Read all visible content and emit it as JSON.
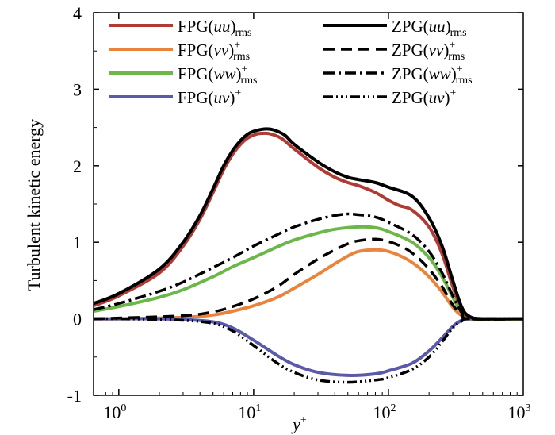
{
  "chart_data": {
    "type": "line",
    "title": "",
    "xlabel": "y",
    "xlabel_sup": "+",
    "ylabel": "Turbulent kinetic energy",
    "xscale": "log",
    "xlim": [
      0.65,
      1000
    ],
    "ylim": [
      -1,
      4
    ],
    "grid": false,
    "legend_position": "top",
    "xticks": [
      {
        "value": 1,
        "base": "10",
        "exp": "0"
      },
      {
        "value": 10,
        "base": "10",
        "exp": "1"
      },
      {
        "value": 100,
        "base": "10",
        "exp": "2"
      },
      {
        "value": 1000,
        "base": "10",
        "exp": "3"
      }
    ],
    "yticks": [
      {
        "value": -1,
        "label": "-1"
      },
      {
        "value": 0,
        "label": "0"
      },
      {
        "value": 1,
        "label": "1"
      },
      {
        "value": 2,
        "label": "2"
      },
      {
        "value": 3,
        "label": "3"
      },
      {
        "value": 4,
        "label": "4"
      }
    ],
    "series": [
      {
        "id": "fpg-uu",
        "name": "FPG(uu)",
        "legend": {
          "prefix": "FPG(",
          "var": "uu",
          "suffix": ")",
          "sup": "+",
          "sub": "rms"
        },
        "color": "#b23a35",
        "dash": "",
        "width": 4,
        "points": [
          [
            0.65,
            0.17
          ],
          [
            1,
            0.3
          ],
          [
            2,
            0.6
          ],
          [
            3,
            0.95
          ],
          [
            4,
            1.3
          ],
          [
            5,
            1.65
          ],
          [
            6,
            1.95
          ],
          [
            7,
            2.15
          ],
          [
            8,
            2.28
          ],
          [
            9,
            2.36
          ],
          [
            10,
            2.4
          ],
          [
            11,
            2.42
          ],
          [
            13,
            2.42
          ],
          [
            16,
            2.36
          ],
          [
            20,
            2.22
          ],
          [
            30,
            1.98
          ],
          [
            40,
            1.85
          ],
          [
            50,
            1.78
          ],
          [
            60,
            1.74
          ],
          [
            80,
            1.65
          ],
          [
            100,
            1.55
          ],
          [
            120,
            1.48
          ],
          [
            150,
            1.42
          ],
          [
            200,
            1.2
          ],
          [
            250,
            0.85
          ],
          [
            300,
            0.42
          ],
          [
            350,
            0.12
          ],
          [
            400,
            0.02
          ],
          [
            500,
            0.0
          ],
          [
            1000,
            0.0
          ]
        ]
      },
      {
        "id": "fpg-vv",
        "name": "FPG(vv)",
        "legend": {
          "prefix": "FPG(",
          "var": "vv",
          "suffix": ")",
          "sup": "+",
          "sub": "rms"
        },
        "color": "#e8843e",
        "dash": "",
        "width": 4,
        "points": [
          [
            0.65,
            0.0
          ],
          [
            1,
            0.0
          ],
          [
            3,
            0.02
          ],
          [
            5,
            0.05
          ],
          [
            7,
            0.1
          ],
          [
            10,
            0.17
          ],
          [
            15,
            0.28
          ],
          [
            20,
            0.4
          ],
          [
            30,
            0.58
          ],
          [
            40,
            0.72
          ],
          [
            50,
            0.82
          ],
          [
            60,
            0.88
          ],
          [
            80,
            0.9
          ],
          [
            100,
            0.88
          ],
          [
            130,
            0.8
          ],
          [
            160,
            0.7
          ],
          [
            200,
            0.55
          ],
          [
            250,
            0.35
          ],
          [
            300,
            0.15
          ],
          [
            350,
            0.04
          ],
          [
            400,
            0.0
          ],
          [
            1000,
            0.0
          ]
        ]
      },
      {
        "id": "fpg-ww",
        "name": "FPG(ww)",
        "legend": {
          "prefix": "FPG(",
          "var": "ww",
          "suffix": ")",
          "sup": "+",
          "sub": "rms"
        },
        "color": "#6cb749",
        "dash": "",
        "width": 4,
        "points": [
          [
            0.65,
            0.1
          ],
          [
            1,
            0.16
          ],
          [
            2,
            0.28
          ],
          [
            3,
            0.38
          ],
          [
            5,
            0.55
          ],
          [
            7,
            0.68
          ],
          [
            10,
            0.8
          ],
          [
            15,
            0.94
          ],
          [
            20,
            1.03
          ],
          [
            30,
            1.12
          ],
          [
            40,
            1.17
          ],
          [
            60,
            1.2
          ],
          [
            80,
            1.19
          ],
          [
            100,
            1.14
          ],
          [
            150,
            1.0
          ],
          [
            200,
            0.8
          ],
          [
            250,
            0.55
          ],
          [
            300,
            0.28
          ],
          [
            350,
            0.08
          ],
          [
            400,
            0.0
          ],
          [
            1000,
            0.0
          ]
        ]
      },
      {
        "id": "fpg-uv",
        "name": "FPG(uv)",
        "legend": {
          "prefix": "FPG(",
          "var": "uv",
          "suffix": ")",
          "sup": "+",
          "sub": ""
        },
        "color": "#5a5aa8",
        "dash": "",
        "width": 4,
        "points": [
          [
            0.65,
            0.0
          ],
          [
            1,
            0.0
          ],
          [
            2,
            0.0
          ],
          [
            3,
            -0.01
          ],
          [
            5,
            -0.04
          ],
          [
            7,
            -0.12
          ],
          [
            10,
            -0.28
          ],
          [
            15,
            -0.48
          ],
          [
            20,
            -0.6
          ],
          [
            30,
            -0.7
          ],
          [
            50,
            -0.74
          ],
          [
            80,
            -0.72
          ],
          [
            100,
            -0.68
          ],
          [
            150,
            -0.58
          ],
          [
            200,
            -0.42
          ],
          [
            250,
            -0.25
          ],
          [
            300,
            -0.1
          ],
          [
            350,
            -0.02
          ],
          [
            400,
            0.0
          ],
          [
            1000,
            0.0
          ]
        ]
      },
      {
        "id": "zpg-uu",
        "name": "ZPG(uu)",
        "legend": {
          "prefix": "ZPG(",
          "var": "uu",
          "suffix": ")",
          "sup": "+",
          "sub": "rms"
        },
        "color": "#000000",
        "dash": "",
        "width": 4,
        "points": [
          [
            0.65,
            0.2
          ],
          [
            1,
            0.33
          ],
          [
            2,
            0.65
          ],
          [
            3,
            1.0
          ],
          [
            4,
            1.35
          ],
          [
            5,
            1.7
          ],
          [
            6,
            2.0
          ],
          [
            7,
            2.2
          ],
          [
            8,
            2.33
          ],
          [
            9,
            2.41
          ],
          [
            10,
            2.45
          ],
          [
            12,
            2.48
          ],
          [
            14,
            2.47
          ],
          [
            17,
            2.4
          ],
          [
            20,
            2.28
          ],
          [
            30,
            2.05
          ],
          [
            40,
            1.92
          ],
          [
            50,
            1.85
          ],
          [
            60,
            1.82
          ],
          [
            80,
            1.78
          ],
          [
            100,
            1.72
          ],
          [
            150,
            1.6
          ],
          [
            200,
            1.32
          ],
          [
            250,
            0.95
          ],
          [
            300,
            0.5
          ],
          [
            350,
            0.15
          ],
          [
            400,
            0.03
          ],
          [
            500,
            0.0
          ],
          [
            1000,
            0.0
          ]
        ]
      },
      {
        "id": "zpg-vv",
        "name": "ZPG(vv)",
        "legend": {
          "prefix": "ZPG(",
          "var": "vv",
          "suffix": ")",
          "sup": "+",
          "sub": "rms"
        },
        "color": "#000000",
        "dash": "14,8",
        "width": 3.5,
        "points": [
          [
            0.65,
            0.0
          ],
          [
            1,
            0.01
          ],
          [
            3,
            0.04
          ],
          [
            5,
            0.09
          ],
          [
            7,
            0.16
          ],
          [
            10,
            0.26
          ],
          [
            15,
            0.42
          ],
          [
            20,
            0.58
          ],
          [
            30,
            0.78
          ],
          [
            40,
            0.9
          ],
          [
            50,
            0.98
          ],
          [
            60,
            1.02
          ],
          [
            80,
            1.04
          ],
          [
            100,
            1.01
          ],
          [
            130,
            0.93
          ],
          [
            160,
            0.82
          ],
          [
            200,
            0.65
          ],
          [
            250,
            0.42
          ],
          [
            300,
            0.18
          ],
          [
            350,
            0.05
          ],
          [
            400,
            0.0
          ],
          [
            1000,
            0.0
          ]
        ]
      },
      {
        "id": "zpg-ww",
        "name": "ZPG(ww)",
        "legend": {
          "prefix": "ZPG(",
          "var": "ww",
          "suffix": ")",
          "sup": "+",
          "sub": "rms"
        },
        "color": "#000000",
        "dash": "14,5,3,5",
        "width": 3.5,
        "points": [
          [
            0.65,
            0.12
          ],
          [
            1,
            0.2
          ],
          [
            2,
            0.36
          ],
          [
            3,
            0.48
          ],
          [
            5,
            0.67
          ],
          [
            7,
            0.8
          ],
          [
            10,
            0.95
          ],
          [
            15,
            1.1
          ],
          [
            20,
            1.2
          ],
          [
            30,
            1.3
          ],
          [
            40,
            1.35
          ],
          [
            50,
            1.37
          ],
          [
            60,
            1.36
          ],
          [
            80,
            1.33
          ],
          [
            100,
            1.26
          ],
          [
            150,
            1.1
          ],
          [
            200,
            0.88
          ],
          [
            250,
            0.6
          ],
          [
            300,
            0.3
          ],
          [
            350,
            0.08
          ],
          [
            400,
            0.0
          ],
          [
            1000,
            0.0
          ]
        ]
      },
      {
        "id": "zpg-uv",
        "name": "ZPG(uv)",
        "legend": {
          "prefix": "ZPG(",
          "var": "uv",
          "suffix": ")",
          "sup": "+",
          "sub": ""
        },
        "color": "#000000",
        "dash": "12,4,2,4,2,4,2,4",
        "width": 3.5,
        "points": [
          [
            0.65,
            0.0
          ],
          [
            1,
            0.0
          ],
          [
            2,
            -0.01
          ],
          [
            3,
            -0.02
          ],
          [
            5,
            -0.06
          ],
          [
            7,
            -0.16
          ],
          [
            10,
            -0.35
          ],
          [
            15,
            -0.58
          ],
          [
            20,
            -0.7
          ],
          [
            30,
            -0.8
          ],
          [
            50,
            -0.83
          ],
          [
            80,
            -0.8
          ],
          [
            100,
            -0.77
          ],
          [
            150,
            -0.66
          ],
          [
            200,
            -0.5
          ],
          [
            250,
            -0.3
          ],
          [
            300,
            -0.12
          ],
          [
            350,
            -0.03
          ],
          [
            400,
            0.0
          ],
          [
            1000,
            0.0
          ]
        ]
      }
    ]
  }
}
